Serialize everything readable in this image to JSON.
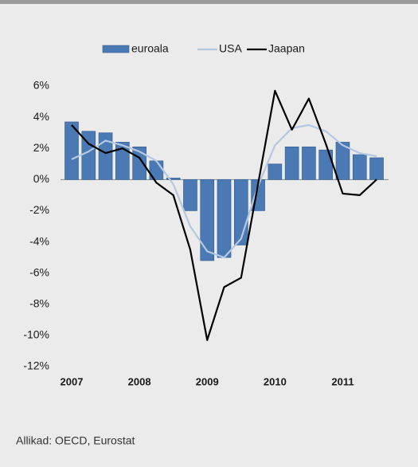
{
  "chart_data": {
    "type": "bar_line",
    "categories": [
      "2007",
      null,
      null,
      null,
      "2008",
      null,
      null,
      null,
      "2009",
      null,
      null,
      null,
      "2010",
      null,
      null,
      null,
      "2011",
      null,
      null
    ],
    "series": [
      {
        "name": "euroala",
        "type": "bar",
        "color": "#4a79b3",
        "values": [
          3.7,
          3.1,
          3.0,
          2.4,
          2.1,
          1.2,
          0.1,
          -2.0,
          -5.2,
          -5.0,
          -4.2,
          -2.0,
          1.0,
          2.1,
          2.1,
          1.9,
          2.4,
          1.6,
          1.4
        ]
      },
      {
        "name": "USA",
        "type": "line",
        "color": "#b5c8e1",
        "values": [
          1.3,
          1.8,
          2.5,
          2.2,
          1.8,
          1.2,
          -0.3,
          -3.0,
          -4.6,
          -5.0,
          -3.8,
          -0.4,
          2.2,
          3.3,
          3.5,
          3.1,
          2.2,
          1.7,
          1.5
        ]
      },
      {
        "name": "Jaapan",
        "type": "line",
        "color": "#000000",
        "values": [
          3.5,
          2.3,
          1.7,
          2.0,
          1.4,
          -0.2,
          -1.0,
          -4.5,
          -10.3,
          -6.9,
          -6.3,
          -0.3,
          5.7,
          3.2,
          5.2,
          2.3,
          -0.9,
          -1.0,
          0.0
        ]
      }
    ],
    "ylim": [
      -12,
      6
    ],
    "yticks": [
      {
        "value": 6,
        "label": "6%"
      },
      {
        "value": 4,
        "label": "4%"
      },
      {
        "value": 2,
        "label": "2%"
      },
      {
        "value": 0,
        "label": "0%"
      },
      {
        "value": -2,
        "label": "-2%"
      },
      {
        "value": -4,
        "label": "-4%"
      },
      {
        "value": -6,
        "label": "-6%"
      },
      {
        "value": -8,
        "label": "-8%"
      },
      {
        "value": -10,
        "label": "-10%"
      },
      {
        "value": -12,
        "label": "-12%"
      }
    ],
    "legend": "top",
    "source": "Allikad: OECD, Eurostat"
  }
}
